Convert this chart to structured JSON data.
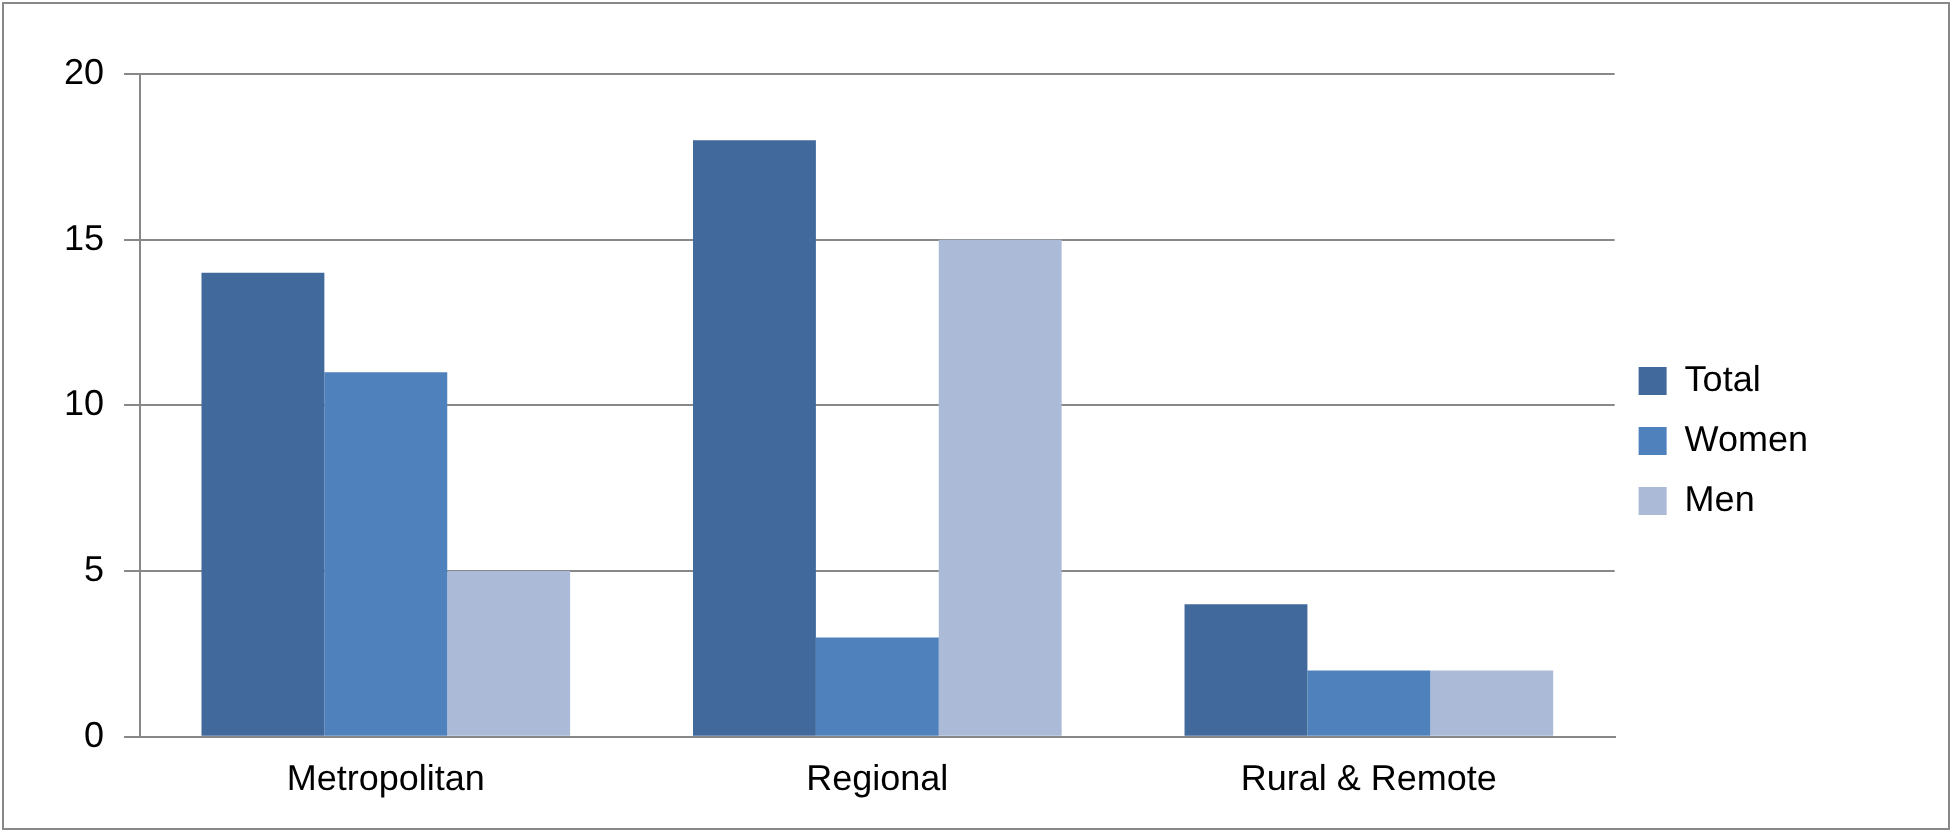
{
  "chart_data": {
    "type": "bar",
    "categories": [
      "Metropolitan",
      "Regional",
      "Rural & Remote"
    ],
    "series": [
      {
        "name": "Total",
        "color": "#41699c",
        "values": [
          14,
          18,
          4
        ]
      },
      {
        "name": "Women",
        "color": "#4f81bd",
        "values": [
          11,
          3,
          2
        ]
      },
      {
        "name": "Men",
        "color": "#aabad7",
        "values": [
          5,
          15,
          2
        ]
      }
    ],
    "ylim": [
      0,
      20
    ],
    "yticks": [
      0,
      5,
      10,
      15,
      20
    ],
    "grid": "y",
    "legend": "right"
  }
}
